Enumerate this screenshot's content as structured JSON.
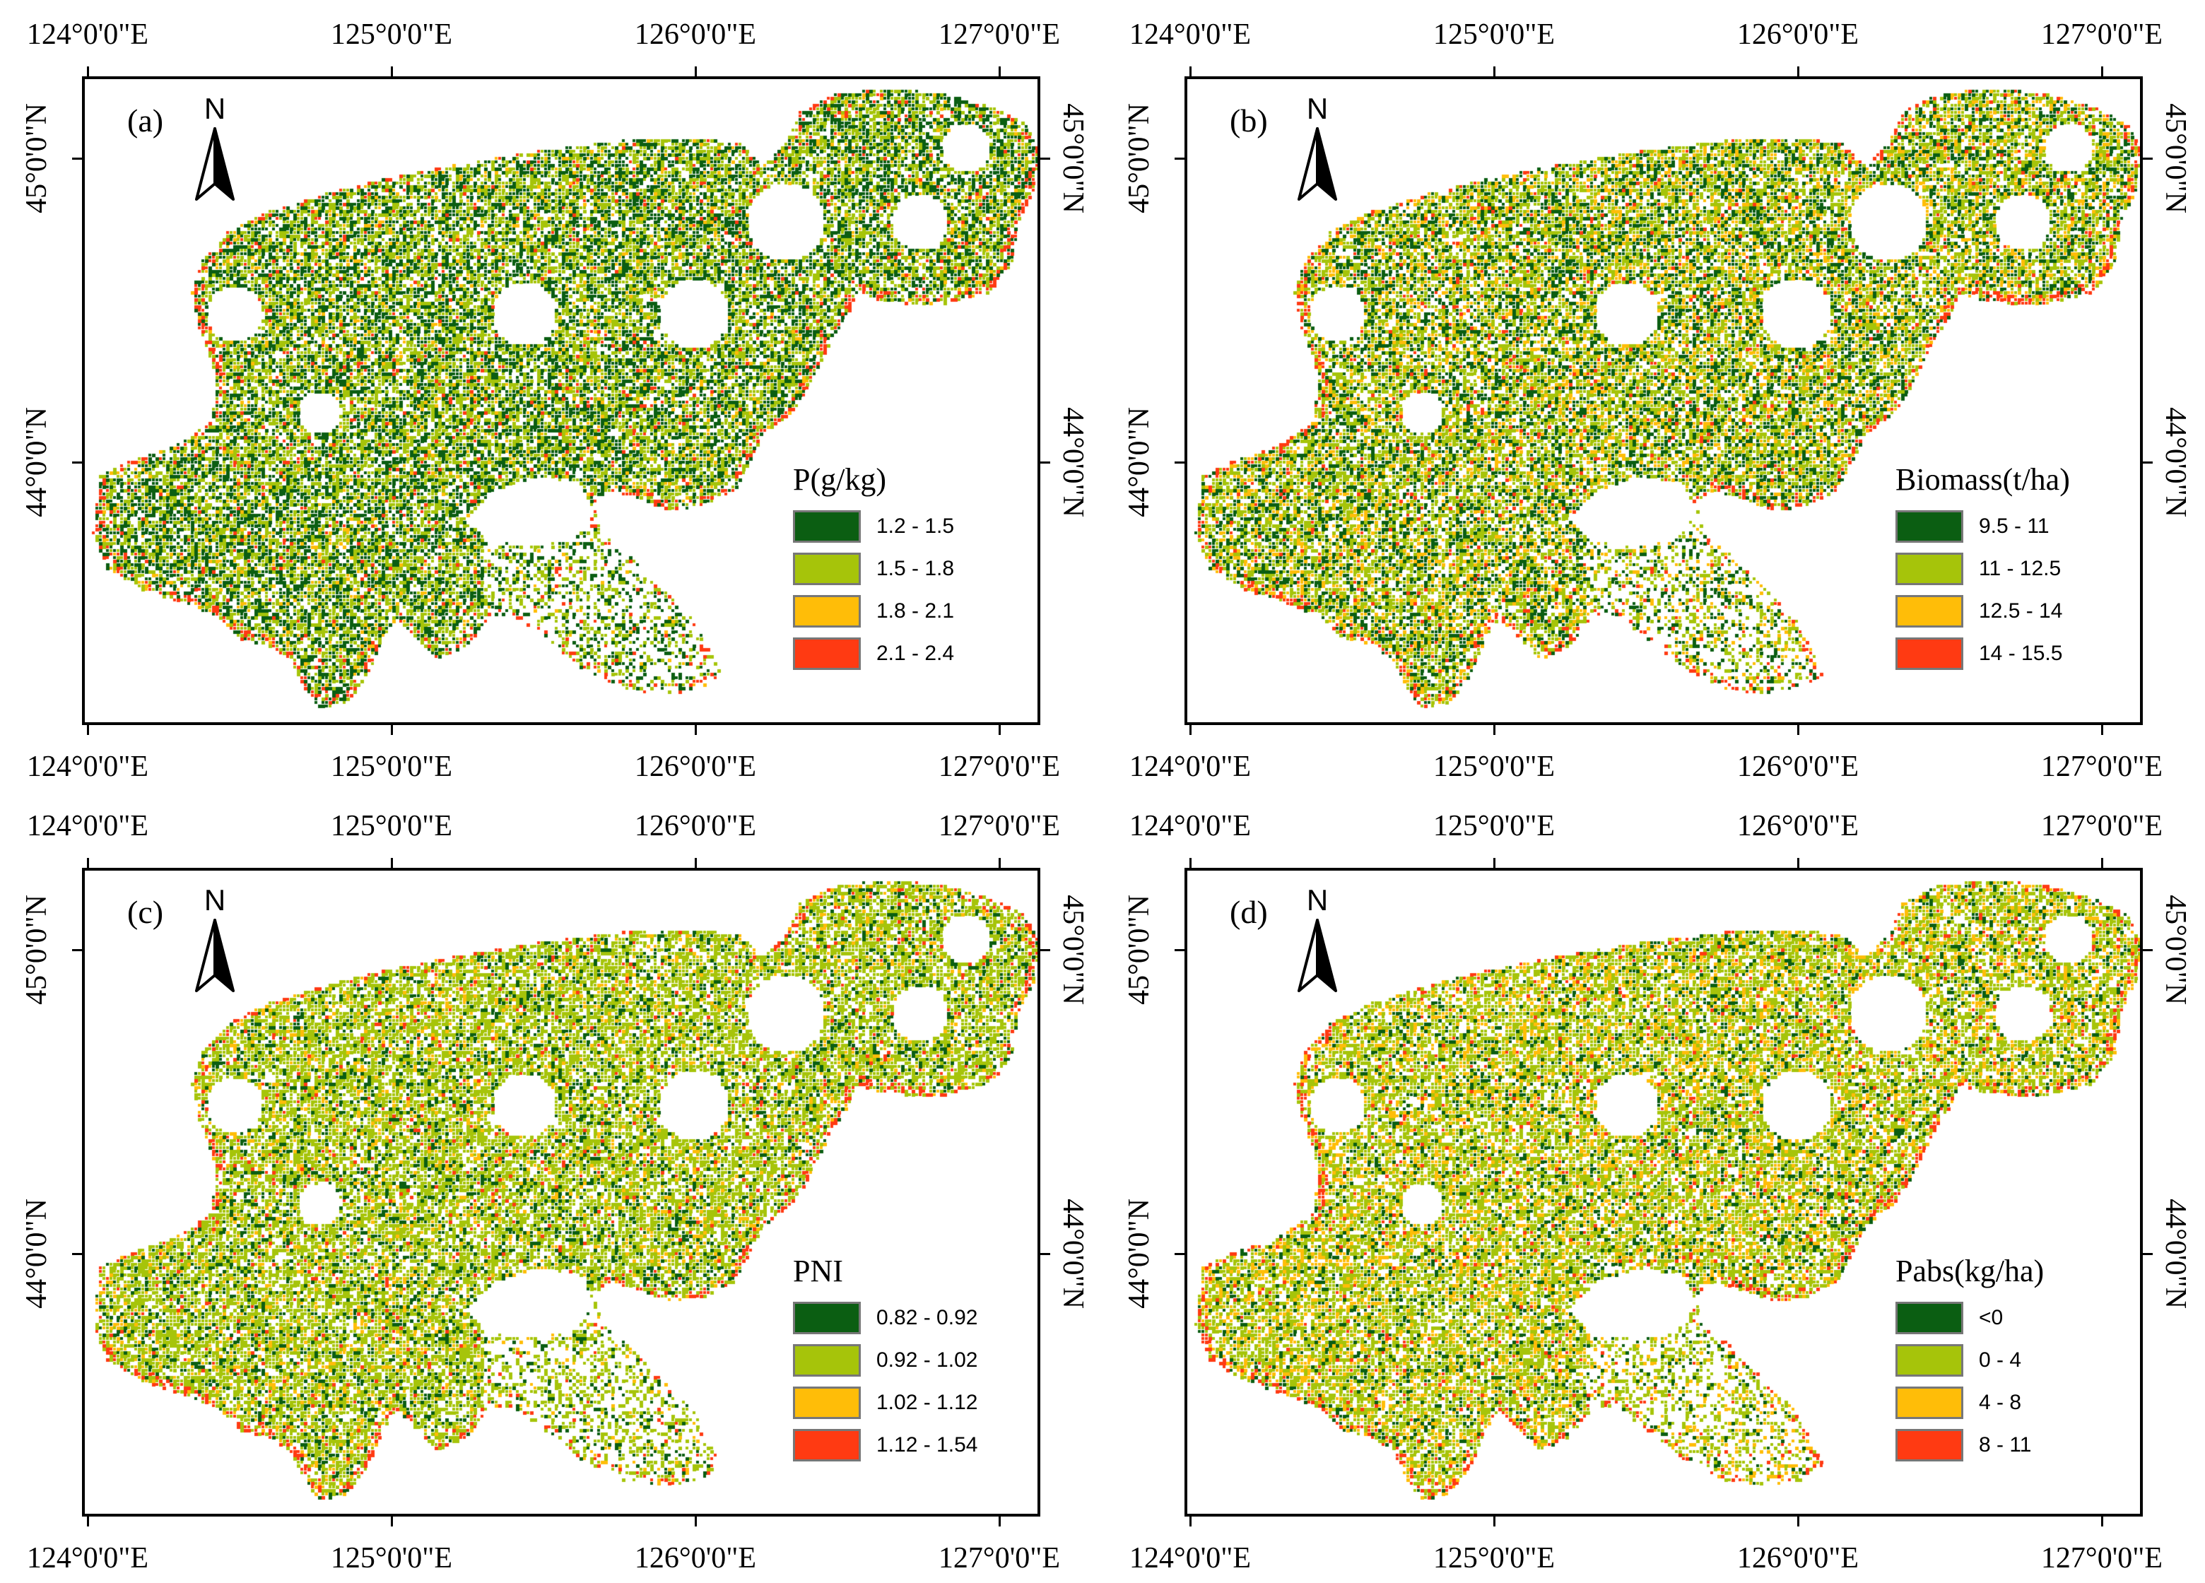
{
  "colors": {
    "class1": "#0b5e12",
    "class2": "#a6c40a",
    "class3": "#ffbd08",
    "class4": "#ff3a12",
    "frame": "#000000",
    "swatch_border": "#777777"
  },
  "graticule": {
    "longitudes": [
      "124°0'0\"E",
      "125°0'0\"E",
      "126°0'0\"E",
      "127°0'0\"E"
    ],
    "latitudes": [
      "45°0'0\"N",
      "44°0'0\"N"
    ]
  },
  "north_arrow": {
    "letter": "N",
    "icon": "north-arrow-icon"
  },
  "panels": [
    {
      "id": "a",
      "label": "(a)",
      "legend_title": "P(g/kg)",
      "classes": [
        "1.2 - 1.5",
        "1.5 - 1.8",
        "1.8 - 2.1",
        "2.1 - 2.4"
      ]
    },
    {
      "id": "b",
      "label": "(b)",
      "legend_title": "Biomass(t/ha)",
      "classes": [
        "9.5 - 11",
        "11 - 12.5",
        "12.5 - 14",
        "14 - 15.5"
      ]
    },
    {
      "id": "c",
      "label": "(c)",
      "legend_title": "PNI",
      "classes": [
        "0.82 - 0.92",
        "0.92 - 1.02",
        "1.02 - 1.12",
        "1.12 - 1.54"
      ]
    },
    {
      "id": "d",
      "label": "(d)",
      "legend_title": "Pabs(kg/ha)",
      "classes": [
        "<0",
        "0 - 4",
        "4 - 8",
        "8 - 11"
      ]
    }
  ]
}
